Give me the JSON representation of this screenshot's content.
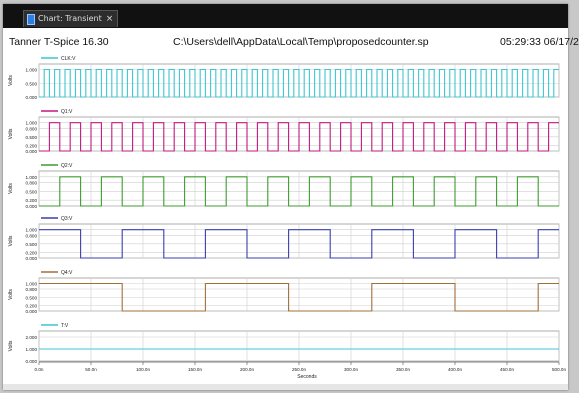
{
  "window": {
    "tab_title": "Chart: Transient",
    "tab_close": "×"
  },
  "header": {
    "simulator": "Tanner T-Spice 16.30",
    "file_path": "C:\\Users\\dell\\AppData\\Local\\Temp\\proposedcounter.sp",
    "timestamp": "05:29:33 06/17/2"
  },
  "colors": {
    "plot1": "#3fc6cf",
    "plot2": "#c2187e",
    "plot3": "#3f9b2f",
    "plot4": "#3a3fb0",
    "plot5": "#a0703a",
    "plot6": "#3fc6cf",
    "grid": "#cfcfcf"
  },
  "chart_data": {
    "type": "line",
    "xlabel": "Seconds",
    "x_ticks": [
      "0.0n",
      "50.0n",
      "100.0n",
      "150.0n",
      "200.0n",
      "250.0n",
      "300.0n",
      "350.0n",
      "400.0n",
      "450.0n",
      "500.0n"
    ],
    "xlim": [
      0,
      500
    ],
    "x_unit": "ns",
    "grid": true,
    "panels": [
      {
        "ylabel": "Volts",
        "legend": "CLK:V",
        "y_ticks": [
          "1.000",
          "0.500",
          "0.000"
        ],
        "ylim": [
          0,
          1.2
        ],
        "waveform": "square",
        "low": 0.0,
        "high": 1.0,
        "period": 10,
        "start": 0,
        "start_level": "low"
      },
      {
        "ylabel": "Volts",
        "legend": "Q1:V",
        "y_ticks": [
          "1.000",
          "0.800",
          "0.500",
          "0.200",
          "0.000"
        ],
        "ylim": [
          0,
          1.2
        ],
        "waveform": "square",
        "low": 0.0,
        "high": 1.0,
        "period": 20,
        "start": 0,
        "start_level": "low"
      },
      {
        "ylabel": "Volts",
        "legend": "Q2:V",
        "y_ticks": [
          "1.000",
          "0.800",
          "0.500",
          "0.200",
          "0.000"
        ],
        "ylim": [
          0,
          1.2
        ],
        "waveform": "square",
        "low": 0.0,
        "high": 1.0,
        "period": 40,
        "start": 0,
        "start_level": "low"
      },
      {
        "ylabel": "Volts",
        "legend": "Q3:V",
        "y_ticks": [
          "1.000",
          "0.800",
          "0.500",
          "0.200",
          "0.000"
        ],
        "ylim": [
          0,
          1.2
        ],
        "waveform": "square",
        "low": 0.0,
        "high": 1.0,
        "period": 80,
        "start": 0,
        "start_level": "high"
      },
      {
        "ylabel": "Volts",
        "legend": "Q4:V",
        "y_ticks": [
          "1.000",
          "0.800",
          "0.500",
          "0.200",
          "0.000"
        ],
        "ylim": [
          0,
          1.2
        ],
        "waveform": "square",
        "low": 0.0,
        "high": 1.0,
        "period": 160,
        "start": 0,
        "start_level": "high"
      },
      {
        "ylabel": "Volts",
        "legend": "T:V",
        "y_ticks": [
          "2.000",
          "1.000",
          "0.000"
        ],
        "ylim": [
          0,
          2.5
        ],
        "waveform": "constant",
        "level": 1.0
      }
    ]
  }
}
